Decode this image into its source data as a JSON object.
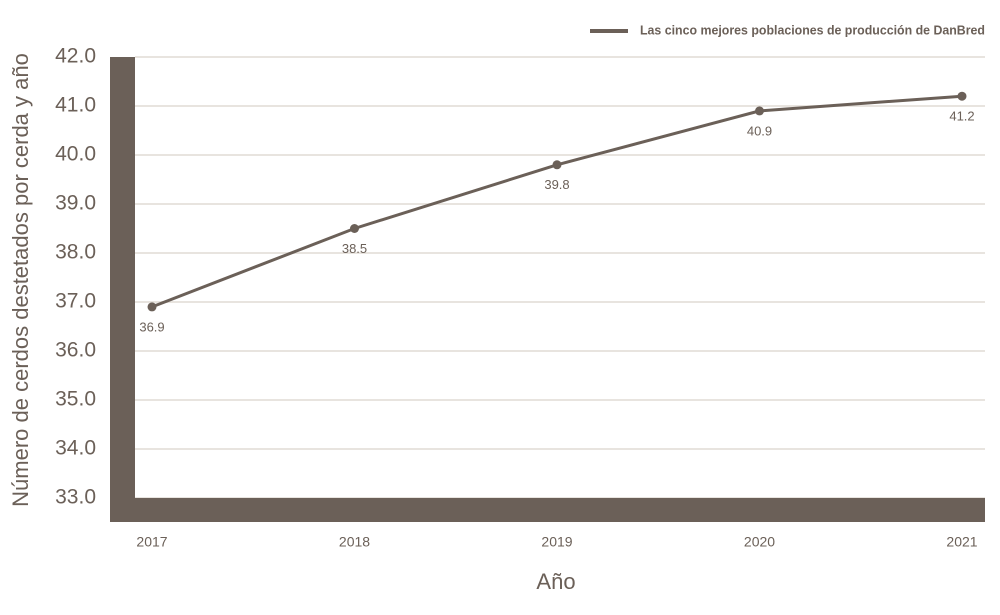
{
  "chart_data": {
    "type": "line",
    "y_label": "Número de cerdos destetados por cerda y año",
    "x_label": "Año",
    "categories": [
      "2017",
      "2018",
      "2019",
      "2020",
      "2021"
    ],
    "series": [
      {
        "name": "Las cinco mejores poblaciones de producción de DanBred",
        "color": "#6b6058",
        "values": [
          36.9,
          38.5,
          39.8,
          40.9,
          41.2
        ]
      }
    ],
    "ylim": [
      33,
      42
    ],
    "yticks": [
      {
        "value": 33,
        "label": "33.0"
      },
      {
        "value": 34,
        "label": "34.0"
      },
      {
        "value": 35,
        "label": "35.0"
      },
      {
        "value": 36,
        "label": "36.0"
      },
      {
        "value": 37,
        "label": "37.0"
      },
      {
        "value": 38,
        "label": "38.0"
      },
      {
        "value": 39,
        "label": "39.0"
      },
      {
        "value": 40,
        "label": "40.0"
      },
      {
        "value": 41,
        "label": "41.0"
      },
      {
        "value": 42,
        "label": "42.0"
      }
    ],
    "grid": true,
    "legend": "top-right"
  }
}
